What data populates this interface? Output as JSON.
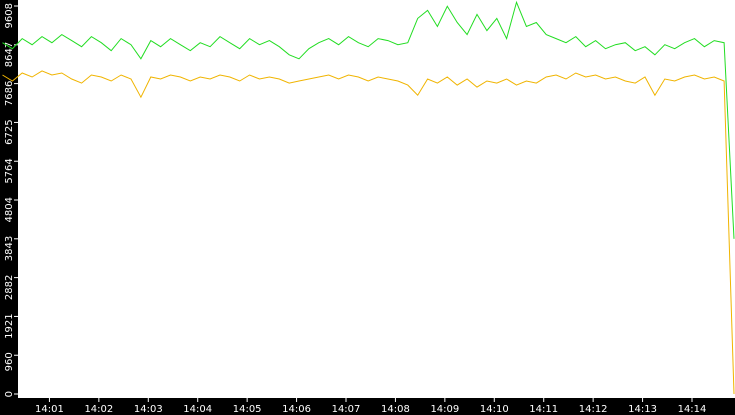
{
  "chart_data": {
    "type": "line",
    "xlim": [
      0,
      14.87
    ],
    "xticks": [
      {
        "value": 1,
        "label": "14:01"
      },
      {
        "value": 2,
        "label": "14:02"
      },
      {
        "value": 3,
        "label": "14:03"
      },
      {
        "value": 4,
        "label": "14:04"
      },
      {
        "value": 5,
        "label": "14:05"
      },
      {
        "value": 6,
        "label": "14:06"
      },
      {
        "value": 7,
        "label": "14:07"
      },
      {
        "value": 8,
        "label": "14:08"
      },
      {
        "value": 9,
        "label": "14:09"
      },
      {
        "value": 10,
        "label": "14:10"
      },
      {
        "value": 11,
        "label": "14:11"
      },
      {
        "value": 12,
        "label": "14:12"
      },
      {
        "value": 13,
        "label": "14:13"
      },
      {
        "value": 14,
        "label": "14:14"
      }
    ],
    "ylim": [
      0,
      9608
    ],
    "yticks": [
      0,
      960,
      1921,
      2882,
      3843,
      4804,
      5764,
      6725,
      7686,
      8647,
      9608
    ],
    "grid": false,
    "x": [
      0.05,
      0.25,
      0.45,
      0.65,
      0.85,
      1.05,
      1.25,
      1.45,
      1.65,
      1.85,
      2.05,
      2.25,
      2.45,
      2.65,
      2.85,
      3.05,
      3.25,
      3.45,
      3.65,
      3.85,
      4.05,
      4.25,
      4.45,
      4.65,
      4.85,
      5.05,
      5.25,
      5.45,
      5.65,
      5.85,
      6.05,
      6.25,
      6.45,
      6.65,
      6.85,
      7.05,
      7.25,
      7.45,
      7.65,
      7.85,
      8.05,
      8.25,
      8.45,
      8.65,
      8.85,
      9.05,
      9.25,
      9.45,
      9.65,
      9.85,
      10.05,
      10.25,
      10.45,
      10.65,
      10.85,
      11.05,
      11.25,
      11.45,
      11.65,
      11.85,
      12.05,
      12.25,
      12.45,
      12.65,
      12.85,
      13.05,
      13.25,
      13.45,
      13.65,
      13.85,
      14.05,
      14.25,
      14.45,
      14.65,
      14.85
    ],
    "series": [
      {
        "color": "#22dd22",
        "values": [
          8700,
          8550,
          8800,
          8650,
          8850,
          8700,
          8900,
          8750,
          8600,
          8850,
          8700,
          8500,
          8800,
          8650,
          8300,
          8750,
          8600,
          8800,
          8650,
          8500,
          8700,
          8600,
          8850,
          8700,
          8550,
          8800,
          8650,
          8750,
          8600,
          8400,
          8300,
          8550,
          8700,
          8800,
          8650,
          8850,
          8700,
          8600,
          8800,
          8750,
          8650,
          8700,
          9300,
          9500,
          9100,
          9600,
          9200,
          8900,
          9400,
          9000,
          9300,
          8800,
          9700,
          9100,
          9200,
          8900,
          8800,
          8700,
          8850,
          8600,
          8750,
          8550,
          8650,
          8700,
          8500,
          8600,
          8400,
          8650,
          8550,
          8700,
          8800,
          8600,
          8750,
          8700,
          3843
        ]
      },
      {
        "color": "#f0b400",
        "values": [
          7900,
          7750,
          7950,
          7850,
          8000,
          7900,
          7950,
          7800,
          7700,
          7900,
          7850,
          7750,
          7900,
          7800,
          7350,
          7850,
          7800,
          7900,
          7850,
          7750,
          7850,
          7800,
          7900,
          7850,
          7750,
          7900,
          7800,
          7850,
          7800,
          7700,
          7750,
          7800,
          7850,
          7900,
          7800,
          7900,
          7850,
          7750,
          7850,
          7800,
          7750,
          7650,
          7400,
          7800,
          7700,
          7850,
          7650,
          7800,
          7600,
          7750,
          7700,
          7800,
          7650,
          7750,
          7700,
          7850,
          7900,
          7800,
          7950,
          7850,
          7900,
          7800,
          7850,
          7750,
          7700,
          7850,
          7400,
          7800,
          7750,
          7850,
          7900,
          7800,
          7850,
          7750,
          0
        ]
      }
    ]
  }
}
